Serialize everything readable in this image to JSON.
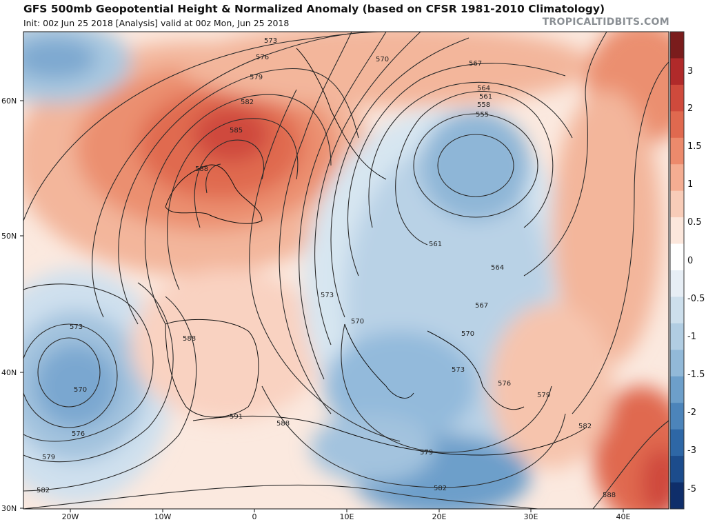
{
  "header": {
    "title": "GFS 500mb Geopotential Height & Normalized Anomaly (based on CFSR 1981-2010 Climatology)",
    "subtitle": "Init: 00z Jun 25 2018   [Analysis]   valid at 00z Mon, Jun 25 2018",
    "brand": "TROPICALTIDBITS.COM"
  },
  "map": {
    "lat_labels": [
      "60N",
      "50N",
      "40N",
      "30N"
    ],
    "lon_labels": [
      "20W",
      "10W",
      "0",
      "10E",
      "20E",
      "30E",
      "40E"
    ],
    "contour_labels": [
      "573",
      "576",
      "579",
      "582",
      "585",
      "588",
      "570",
      "567",
      "564",
      "561",
      "558",
      "555",
      "561",
      "564",
      "567",
      "570",
      "573",
      "573",
      "570",
      "576",
      "579",
      "582",
      "588",
      "591",
      "588",
      "579",
      "582",
      "576",
      "579",
      "582",
      "588",
      "570",
      "573"
    ]
  },
  "colorbar": {
    "ticks": [
      "3",
      "2",
      "1.5",
      "1",
      "0.5",
      "0",
      "-0.5",
      "-1",
      "-1.5",
      "-2",
      "-3",
      "-5"
    ],
    "colors": [
      "#7a1c1c",
      "#b02a2a",
      "#cf4a3c",
      "#e0694f",
      "#ec8a6c",
      "#f4ad92",
      "#f8ccb8",
      "#fce7dc",
      "#ffffff",
      "#e7eef5",
      "#cddfec",
      "#b1cde2",
      "#92b9d8",
      "#6d9fca",
      "#4c84ba",
      "#2e67a6",
      "#1c4c8c",
      "#0f2e6a"
    ]
  }
}
